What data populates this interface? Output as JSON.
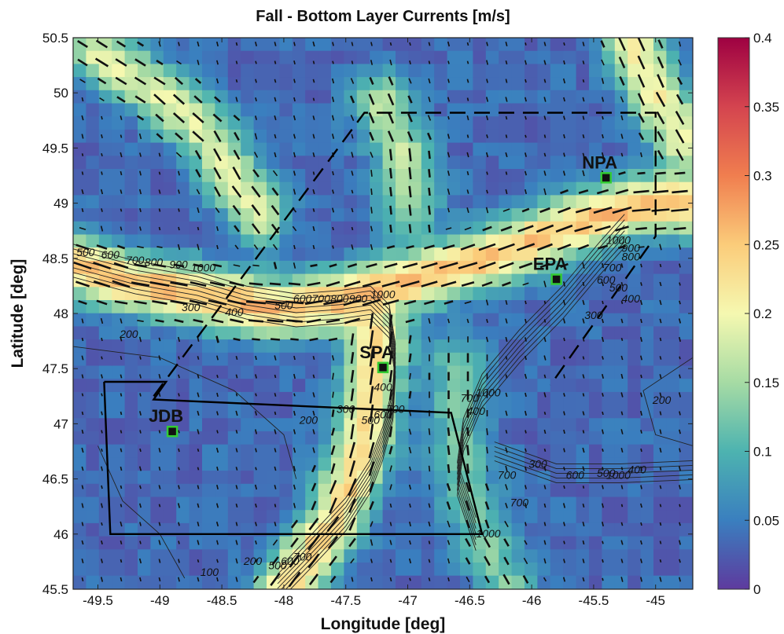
{
  "chart_data": {
    "type": "heatmap",
    "title": "Fall - Bottom Layer Currents [m/s]",
    "xlabel": "Longitude [deg]",
    "ylabel": "Latitude [deg]",
    "xlim": [
      -49.7,
      -44.7
    ],
    "ylim": [
      45.5,
      50.5
    ],
    "x_ticks": [
      "-49.5",
      "-49",
      "-48.5",
      "-48",
      "-47.5",
      "-47",
      "-46.5",
      "-46",
      "-45.5",
      "-45"
    ],
    "y_ticks": [
      "45.5",
      "46",
      "46.5",
      "47",
      "47.5",
      "48",
      "48.5",
      "49",
      "49.5",
      "50",
      "50.5"
    ],
    "colorbar": {
      "min": 0,
      "max": 0.4,
      "ticks": [
        "0",
        "0.05",
        "0.1",
        "0.15",
        "0.2",
        "0.25",
        "0.3",
        "0.35",
        "0.4"
      ],
      "colormap": [
        "#5e3a9e",
        "#3a7fbf",
        "#4db3b0",
        "#a6dba4",
        "#f5f8b0",
        "#fbcc7a",
        "#f07e4f",
        "#d4444f",
        "#9e0142"
      ]
    },
    "sites": [
      {
        "name": "NPA",
        "lon": -45.4,
        "lat": 49.23
      },
      {
        "name": "EPA",
        "lon": -45.8,
        "lat": 48.31
      },
      {
        "name": "SPA",
        "lon": -47.2,
        "lat": 47.51
      },
      {
        "name": "JDB",
        "lon": -48.9,
        "lat": 46.93
      }
    ],
    "jet_centerlines": [
      {
        "name": "slope-current",
        "points": [
          [
            -49.7,
            48.45
          ],
          [
            -49.3,
            48.3
          ],
          [
            -48.8,
            48.2
          ],
          [
            -48.3,
            48.08
          ],
          [
            -47.9,
            48.04
          ],
          [
            -47.6,
            48.1
          ],
          [
            -47.3,
            48.2
          ],
          [
            -46.9,
            48.32
          ],
          [
            -46.5,
            48.45
          ],
          [
            -46.0,
            48.65
          ],
          [
            -45.6,
            48.82
          ],
          [
            -45.2,
            48.95
          ],
          [
            -44.7,
            49.0
          ]
        ],
        "speed": 0.22
      },
      {
        "name": "channel-flow",
        "points": [
          [
            -47.25,
            47.7
          ],
          [
            -47.3,
            47.3
          ],
          [
            -47.35,
            46.9
          ],
          [
            -47.45,
            46.5
          ],
          [
            -47.6,
            46.1
          ],
          [
            -47.8,
            45.8
          ],
          [
            -48.0,
            45.5
          ]
        ],
        "speed": 0.2
      },
      {
        "name": "upper-left-band",
        "points": [
          [
            -49.5,
            50.35
          ],
          [
            -49.0,
            50.0
          ],
          [
            -48.6,
            49.6
          ],
          [
            -48.4,
            49.2
          ],
          [
            -48.2,
            48.9
          ]
        ],
        "speed": 0.15
      },
      {
        "name": "upper-right-band",
        "points": [
          [
            -45.2,
            50.5
          ],
          [
            -45.0,
            50.0
          ],
          [
            -44.8,
            49.6
          ]
        ],
        "speed": 0.17
      },
      {
        "name": "east-vertical",
        "points": [
          [
            -46.6,
            47.5
          ],
          [
            -46.6,
            47.0
          ],
          [
            -46.55,
            46.5
          ],
          [
            -46.4,
            46.0
          ],
          [
            -46.2,
            45.6
          ]
        ],
        "speed": 0.09
      },
      {
        "name": "north-central",
        "points": [
          [
            -47.2,
            49.9
          ],
          [
            -47.05,
            49.5
          ],
          [
            -47.0,
            49.0
          ]
        ],
        "speed": 0.13
      }
    ],
    "contour_labels": [
      {
        "text": "500",
        "lon": -49.6,
        "lat": 48.52
      },
      {
        "text": "600",
        "lon": -49.4,
        "lat": 48.5
      },
      {
        "text": "700",
        "lon": -49.2,
        "lat": 48.45
      },
      {
        "text": "800",
        "lon": -49.05,
        "lat": 48.43
      },
      {
        "text": "900",
        "lon": -48.85,
        "lat": 48.41
      },
      {
        "text": "1000",
        "lon": -48.65,
        "lat": 48.38
      },
      {
        "text": "300",
        "lon": -48.75,
        "lat": 48.02
      },
      {
        "text": "400",
        "lon": -48.4,
        "lat": 47.98
      },
      {
        "text": "200",
        "lon": -49.25,
        "lat": 47.78
      },
      {
        "text": "500",
        "lon": -48.0,
        "lat": 48.04
      },
      {
        "text": "600",
        "lon": -47.85,
        "lat": 48.1
      },
      {
        "text": "700",
        "lon": -47.7,
        "lat": 48.1
      },
      {
        "text": "800",
        "lon": -47.55,
        "lat": 48.1
      },
      {
        "text": "900",
        "lon": -47.4,
        "lat": 48.1
      },
      {
        "text": "1000",
        "lon": -47.2,
        "lat": 48.14
      },
      {
        "text": "300",
        "lon": -47.5,
        "lat": 47.1
      },
      {
        "text": "400",
        "lon": -47.2,
        "lat": 47.3
      },
      {
        "text": "200",
        "lon": -47.8,
        "lat": 47.0
      },
      {
        "text": "500",
        "lon": -47.3,
        "lat": 47.0
      },
      {
        "text": "600",
        "lon": -47.2,
        "lat": 47.05
      },
      {
        "text": "700",
        "lon": -47.1,
        "lat": 47.1
      },
      {
        "text": "1000",
        "lon": -46.35,
        "lat": 47.25
      },
      {
        "text": "700",
        "lon": -46.5,
        "lat": 47.2
      },
      {
        "text": "400",
        "lon": -46.45,
        "lat": 47.08
      },
      {
        "text": "1000",
        "lon": -45.3,
        "lat": 48.63
      },
      {
        "text": "900",
        "lon": -45.2,
        "lat": 48.56
      },
      {
        "text": "800",
        "lon": -45.2,
        "lat": 48.48
      },
      {
        "text": "700",
        "lon": -45.35,
        "lat": 48.38
      },
      {
        "text": "600",
        "lon": -45.4,
        "lat": 48.27
      },
      {
        "text": "500",
        "lon": -45.3,
        "lat": 48.2
      },
      {
        "text": "400",
        "lon": -45.2,
        "lat": 48.1
      },
      {
        "text": "300",
        "lon": -45.5,
        "lat": 47.95
      },
      {
        "text": "200",
        "lon": -44.95,
        "lat": 47.18
      },
      {
        "text": "300",
        "lon": -45.95,
        "lat": 46.6
      },
      {
        "text": "700",
        "lon": -46.2,
        "lat": 46.5
      },
      {
        "text": "700",
        "lon": -46.1,
        "lat": 46.25
      },
      {
        "text": "600",
        "lon": -45.65,
        "lat": 46.5
      },
      {
        "text": "500",
        "lon": -45.4,
        "lat": 46.52
      },
      {
        "text": "400",
        "lon": -45.15,
        "lat": 46.55
      },
      {
        "text": "1000",
        "lon": -45.3,
        "lat": 46.5
      },
      {
        "text": "1000",
        "lon": -46.35,
        "lat": 45.97
      },
      {
        "text": "100",
        "lon": -48.6,
        "lat": 45.62
      },
      {
        "text": "200",
        "lon": -48.25,
        "lat": 45.72
      },
      {
        "text": "500",
        "lon": -48.05,
        "lat": 45.68
      },
      {
        "text": "600",
        "lon": -47.95,
        "lat": 45.72
      },
      {
        "text": "700",
        "lon": -47.85,
        "lat": 45.76
      }
    ],
    "solid_box": [
      [
        -49.45,
        47.38
      ],
      [
        -48.95,
        47.38
      ],
      [
        -49.05,
        47.22
      ],
      [
        -46.65,
        47.1
      ],
      [
        -46.4,
        46.0
      ],
      [
        -49.4,
        46.0
      ],
      [
        -49.45,
        47.38
      ]
    ],
    "dashed_box": [
      [
        -49.05,
        47.25
      ],
      [
        -47.35,
        49.82
      ],
      [
        -45.0,
        49.82
      ],
      [
        -45.0,
        48.7
      ],
      [
        -45.85,
        47.35
      ]
    ]
  }
}
